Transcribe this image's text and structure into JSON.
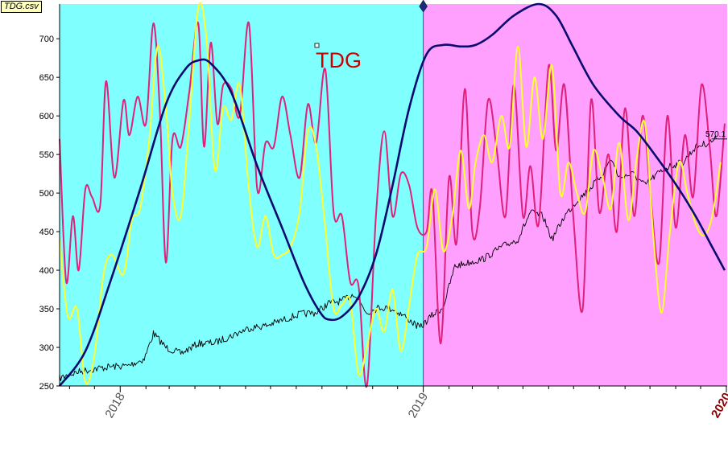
{
  "file_label": "TDG.csv",
  "chart_data": {
    "type": "line",
    "title": "TDG",
    "ylim": [
      250,
      745
    ],
    "xlim": [
      "2017-10-20",
      "2020-01-02"
    ],
    "y_ticks": [
      250,
      300,
      350,
      400,
      450,
      500,
      550,
      600,
      650,
      700
    ],
    "x_tick_labels": [
      {
        "date": "2018-01-01",
        "label": "2018"
      },
      {
        "date": "2019-01-01",
        "label": "2019"
      },
      {
        "date": "2020-01-01",
        "label": "2020"
      }
    ],
    "regions": [
      {
        "from": "2017-10-20",
        "to": "2019-01-01",
        "color": "#80ffff"
      },
      {
        "from": "2019-01-01",
        "to": "2020-01-02",
        "color": "#ffa0ff"
      }
    ],
    "last_value_label": "570.1",
    "colors": {
      "price": "#000000",
      "smooth_cycle": "#0a0a70",
      "oscillator_magenta": "#e0207a",
      "oscillator_yellow": "#ffff30",
      "title": "#cc0000",
      "axis_highlight_label": "#8b0000"
    },
    "series": [
      {
        "key": "price",
        "points": [
          [
            "2017-10-20",
            260
          ],
          [
            "2017-11-10",
            268
          ],
          [
            "2017-12-01",
            272
          ],
          [
            "2017-12-20",
            275
          ],
          [
            "2018-01-10",
            276
          ],
          [
            "2018-01-30",
            285
          ],
          [
            "2018-02-10",
            318
          ],
          [
            "2018-02-25",
            300
          ],
          [
            "2018-03-15",
            292
          ],
          [
            "2018-04-05",
            305
          ],
          [
            "2018-04-25",
            306
          ],
          [
            "2018-05-15",
            315
          ],
          [
            "2018-06-05",
            325
          ],
          [
            "2018-06-25",
            328
          ],
          [
            "2018-07-15",
            335
          ],
          [
            "2018-08-05",
            343
          ],
          [
            "2018-08-25",
            345
          ],
          [
            "2018-09-10",
            358
          ],
          [
            "2018-09-25",
            360
          ],
          [
            "2018-10-10",
            370
          ],
          [
            "2018-10-25",
            345
          ],
          [
            "2018-11-10",
            352
          ],
          [
            "2018-11-25",
            350
          ],
          [
            "2018-12-10",
            340
          ],
          [
            "2018-12-28",
            325
          ],
          [
            "2019-01-10",
            340
          ],
          [
            "2019-01-25",
            352
          ],
          [
            "2019-02-08",
            405
          ],
          [
            "2019-02-25",
            410
          ],
          [
            "2019-03-15",
            415
          ],
          [
            "2019-04-05",
            430
          ],
          [
            "2019-04-25",
            440
          ],
          [
            "2019-05-10",
            475
          ],
          [
            "2019-05-25",
            470
          ],
          [
            "2019-06-05",
            440
          ],
          [
            "2019-06-20",
            470
          ],
          [
            "2019-07-05",
            490
          ],
          [
            "2019-07-20",
            505
          ],
          [
            "2019-08-05",
            525
          ],
          [
            "2019-08-15",
            545
          ],
          [
            "2019-08-25",
            520
          ],
          [
            "2019-09-10",
            525
          ],
          [
            "2019-09-25",
            510
          ],
          [
            "2019-10-10",
            525
          ],
          [
            "2019-10-25",
            535
          ],
          [
            "2019-11-10",
            540
          ],
          [
            "2019-11-25",
            560
          ],
          [
            "2019-12-10",
            565
          ],
          [
            "2019-12-20",
            570
          ]
        ]
      },
      {
        "key": "smooth_cycle",
        "points": [
          [
            "2017-10-20",
            250
          ],
          [
            "2017-11-20",
            295
          ],
          [
            "2017-12-20",
            385
          ],
          [
            "2018-01-25",
            505
          ],
          [
            "2018-02-25",
            615
          ],
          [
            "2018-03-20",
            660
          ],
          [
            "2018-04-05",
            672
          ],
          [
            "2018-04-20",
            668
          ],
          [
            "2018-05-15",
            630
          ],
          [
            "2018-06-15",
            535
          ],
          [
            "2018-07-15",
            455
          ],
          [
            "2018-08-10",
            385
          ],
          [
            "2018-08-30",
            345
          ],
          [
            "2018-09-10",
            336
          ],
          [
            "2018-09-25",
            340
          ],
          [
            "2018-10-15",
            365
          ],
          [
            "2018-11-05",
            420
          ],
          [
            "2018-11-25",
            510
          ],
          [
            "2018-12-15",
            610
          ],
          [
            "2019-01-05",
            680
          ],
          [
            "2019-01-25",
            692
          ],
          [
            "2019-02-15",
            690
          ],
          [
            "2019-03-05",
            692
          ],
          [
            "2019-03-25",
            705
          ],
          [
            "2019-04-20",
            730
          ],
          [
            "2019-05-20",
            745
          ],
          [
            "2019-06-10",
            730
          ],
          [
            "2019-06-30",
            690
          ],
          [
            "2019-07-25",
            640
          ],
          [
            "2019-08-25",
            600
          ],
          [
            "2019-09-15",
            580
          ],
          [
            "2019-10-10",
            545
          ],
          [
            "2019-11-05",
            505
          ],
          [
            "2019-11-25",
            470
          ],
          [
            "2019-12-15",
            430
          ],
          [
            "2019-12-30",
            400
          ]
        ]
      },
      {
        "key": "oscillator_magenta",
        "points": [
          [
            "2017-10-20",
            570
          ],
          [
            "2017-10-28",
            385
          ],
          [
            "2017-11-05",
            470
          ],
          [
            "2017-11-12",
            400
          ],
          [
            "2017-11-20",
            505
          ],
          [
            "2017-11-28",
            495
          ],
          [
            "2017-12-08",
            485
          ],
          [
            "2017-12-15",
            645
          ],
          [
            "2017-12-25",
            520
          ],
          [
            "2018-01-05",
            620
          ],
          [
            "2018-01-12",
            575
          ],
          [
            "2018-01-22",
            625
          ],
          [
            "2018-02-01",
            590
          ],
          [
            "2018-02-10",
            720
          ],
          [
            "2018-02-18",
            600
          ],
          [
            "2018-02-25",
            410
          ],
          [
            "2018-03-05",
            570
          ],
          [
            "2018-03-15",
            560
          ],
          [
            "2018-03-25",
            630
          ],
          [
            "2018-04-05",
            720
          ],
          [
            "2018-04-12",
            560
          ],
          [
            "2018-04-20",
            695
          ],
          [
            "2018-04-28",
            590
          ],
          [
            "2018-05-05",
            640
          ],
          [
            "2018-05-15",
            635
          ],
          [
            "2018-05-25",
            600
          ],
          [
            "2018-06-05",
            720
          ],
          [
            "2018-06-15",
            505
          ],
          [
            "2018-06-25",
            565
          ],
          [
            "2018-07-05",
            560
          ],
          [
            "2018-07-15",
            625
          ],
          [
            "2018-07-25",
            575
          ],
          [
            "2018-08-05",
            520
          ],
          [
            "2018-08-15",
            615
          ],
          [
            "2018-08-25",
            565
          ],
          [
            "2018-09-05",
            660
          ],
          [
            "2018-09-15",
            475
          ],
          [
            "2018-09-25",
            470
          ],
          [
            "2018-10-05",
            385
          ],
          [
            "2018-10-15",
            380
          ],
          [
            "2018-10-25",
            250
          ],
          [
            "2018-11-05",
            470
          ],
          [
            "2018-11-15",
            580
          ],
          [
            "2018-11-25",
            470
          ],
          [
            "2018-12-05",
            525
          ],
          [
            "2018-12-15",
            510
          ],
          [
            "2018-12-25",
            455
          ],
          [
            "2019-01-05",
            450
          ],
          [
            "2019-01-12",
            500
          ],
          [
            "2019-01-22",
            305
          ],
          [
            "2019-02-01",
            520
          ],
          [
            "2019-02-10",
            435
          ],
          [
            "2019-02-20",
            635
          ],
          [
            "2019-03-01",
            450
          ],
          [
            "2019-03-10",
            480
          ],
          [
            "2019-03-20",
            620
          ],
          [
            "2019-03-30",
            560
          ],
          [
            "2019-04-10",
            470
          ],
          [
            "2019-04-20",
            640
          ],
          [
            "2019-05-01",
            470
          ],
          [
            "2019-05-10",
            535
          ],
          [
            "2019-05-20",
            460
          ],
          [
            "2019-06-01",
            665
          ],
          [
            "2019-06-10",
            555
          ],
          [
            "2019-06-20",
            640
          ],
          [
            "2019-07-01",
            465
          ],
          [
            "2019-07-12",
            350
          ],
          [
            "2019-07-22",
            620
          ],
          [
            "2019-08-01",
            475
          ],
          [
            "2019-08-12",
            550
          ],
          [
            "2019-08-22",
            450
          ],
          [
            "2019-09-01",
            610
          ],
          [
            "2019-09-12",
            470
          ],
          [
            "2019-09-22",
            600
          ],
          [
            "2019-10-01",
            505
          ],
          [
            "2019-10-12",
            410
          ],
          [
            "2019-10-22",
            600
          ],
          [
            "2019-11-01",
            455
          ],
          [
            "2019-11-12",
            575
          ],
          [
            "2019-11-22",
            495
          ],
          [
            "2019-12-02",
            640
          ],
          [
            "2019-12-12",
            560
          ],
          [
            "2019-12-20",
            470
          ],
          [
            "2019-12-30",
            590
          ]
        ]
      },
      {
        "key": "oscillator_yellow",
        "points": [
          [
            "2017-10-20",
            440
          ],
          [
            "2017-10-30",
            340
          ],
          [
            "2017-11-10",
            350
          ],
          [
            "2017-11-20",
            255
          ],
          [
            "2017-12-01",
            290
          ],
          [
            "2017-12-12",
            395
          ],
          [
            "2017-12-22",
            420
          ],
          [
            "2018-01-05",
            395
          ],
          [
            "2018-01-15",
            465
          ],
          [
            "2018-01-25",
            480
          ],
          [
            "2018-02-05",
            570
          ],
          [
            "2018-02-15",
            690
          ],
          [
            "2018-02-25",
            610
          ],
          [
            "2018-03-05",
            500
          ],
          [
            "2018-03-15",
            470
          ],
          [
            "2018-03-25",
            590
          ],
          [
            "2018-04-05",
            740
          ],
          [
            "2018-04-15",
            700
          ],
          [
            "2018-04-25",
            530
          ],
          [
            "2018-05-05",
            610
          ],
          [
            "2018-05-15",
            595
          ],
          [
            "2018-05-25",
            640
          ],
          [
            "2018-06-05",
            505
          ],
          [
            "2018-06-15",
            430
          ],
          [
            "2018-06-25",
            470
          ],
          [
            "2018-07-05",
            420
          ],
          [
            "2018-07-15",
            420
          ],
          [
            "2018-07-25",
            430
          ],
          [
            "2018-08-05",
            475
          ],
          [
            "2018-08-15",
            580
          ],
          [
            "2018-08-25",
            560
          ],
          [
            "2018-09-05",
            455
          ],
          [
            "2018-09-15",
            350
          ],
          [
            "2018-09-25",
            355
          ],
          [
            "2018-10-05",
            360
          ],
          [
            "2018-10-15",
            265
          ],
          [
            "2018-10-25",
            300
          ],
          [
            "2018-11-05",
            350
          ],
          [
            "2018-11-15",
            320
          ],
          [
            "2018-11-25",
            375
          ],
          [
            "2018-12-05",
            295
          ],
          [
            "2018-12-15",
            355
          ],
          [
            "2018-12-25",
            420
          ],
          [
            "2019-01-05",
            430
          ],
          [
            "2019-01-15",
            505
          ],
          [
            "2019-01-25",
            425
          ],
          [
            "2019-02-05",
            470
          ],
          [
            "2019-02-15",
            555
          ],
          [
            "2019-02-25",
            480
          ],
          [
            "2019-03-05",
            540
          ],
          [
            "2019-03-15",
            575
          ],
          [
            "2019-03-25",
            540
          ],
          [
            "2019-04-05",
            600
          ],
          [
            "2019-04-15",
            560
          ],
          [
            "2019-04-25",
            690
          ],
          [
            "2019-05-05",
            560
          ],
          [
            "2019-05-15",
            650
          ],
          [
            "2019-05-25",
            570
          ],
          [
            "2019-06-05",
            665
          ],
          [
            "2019-06-15",
            500
          ],
          [
            "2019-06-25",
            540
          ],
          [
            "2019-07-05",
            500
          ],
          [
            "2019-07-15",
            475
          ],
          [
            "2019-07-25",
            555
          ],
          [
            "2019-08-05",
            520
          ],
          [
            "2019-08-15",
            480
          ],
          [
            "2019-08-25",
            565
          ],
          [
            "2019-09-05",
            465
          ],
          [
            "2019-09-15",
            545
          ],
          [
            "2019-09-25",
            590
          ],
          [
            "2019-10-05",
            445
          ],
          [
            "2019-10-15",
            345
          ],
          [
            "2019-10-25",
            450
          ],
          [
            "2019-11-05",
            540
          ],
          [
            "2019-11-15",
            500
          ],
          [
            "2019-11-25",
            460
          ],
          [
            "2019-12-05",
            445
          ],
          [
            "2019-12-15",
            470
          ],
          [
            "2019-12-25",
            540
          ]
        ]
      }
    ]
  }
}
